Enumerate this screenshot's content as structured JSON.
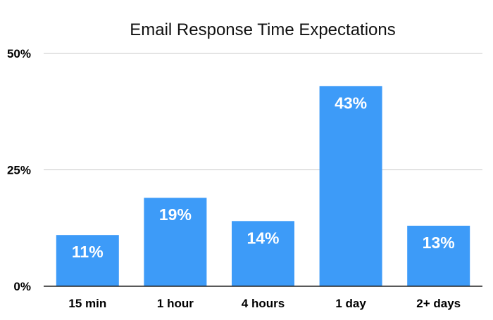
{
  "chart_data": {
    "type": "bar",
    "title": "Email Response Time Expectations",
    "xlabel": "",
    "ylabel": "",
    "categories": [
      "15 min",
      "1 hour",
      "4 hours",
      "1 day",
      "2+ days"
    ],
    "values": [
      11,
      19,
      14,
      43,
      13
    ],
    "data_labels": [
      "11%",
      "19%",
      "14%",
      "43%",
      "13%"
    ],
    "ylim": [
      0,
      50
    ],
    "yticks": [
      {
        "value": 0,
        "label": "0%"
      },
      {
        "value": 25,
        "label": "25%"
      },
      {
        "value": 50,
        "label": "50%"
      }
    ],
    "grid": true,
    "legend": "none",
    "bar_color": "#3d9bf8",
    "grid_color": "#c8c8c8",
    "axis_color": "#222222"
  }
}
